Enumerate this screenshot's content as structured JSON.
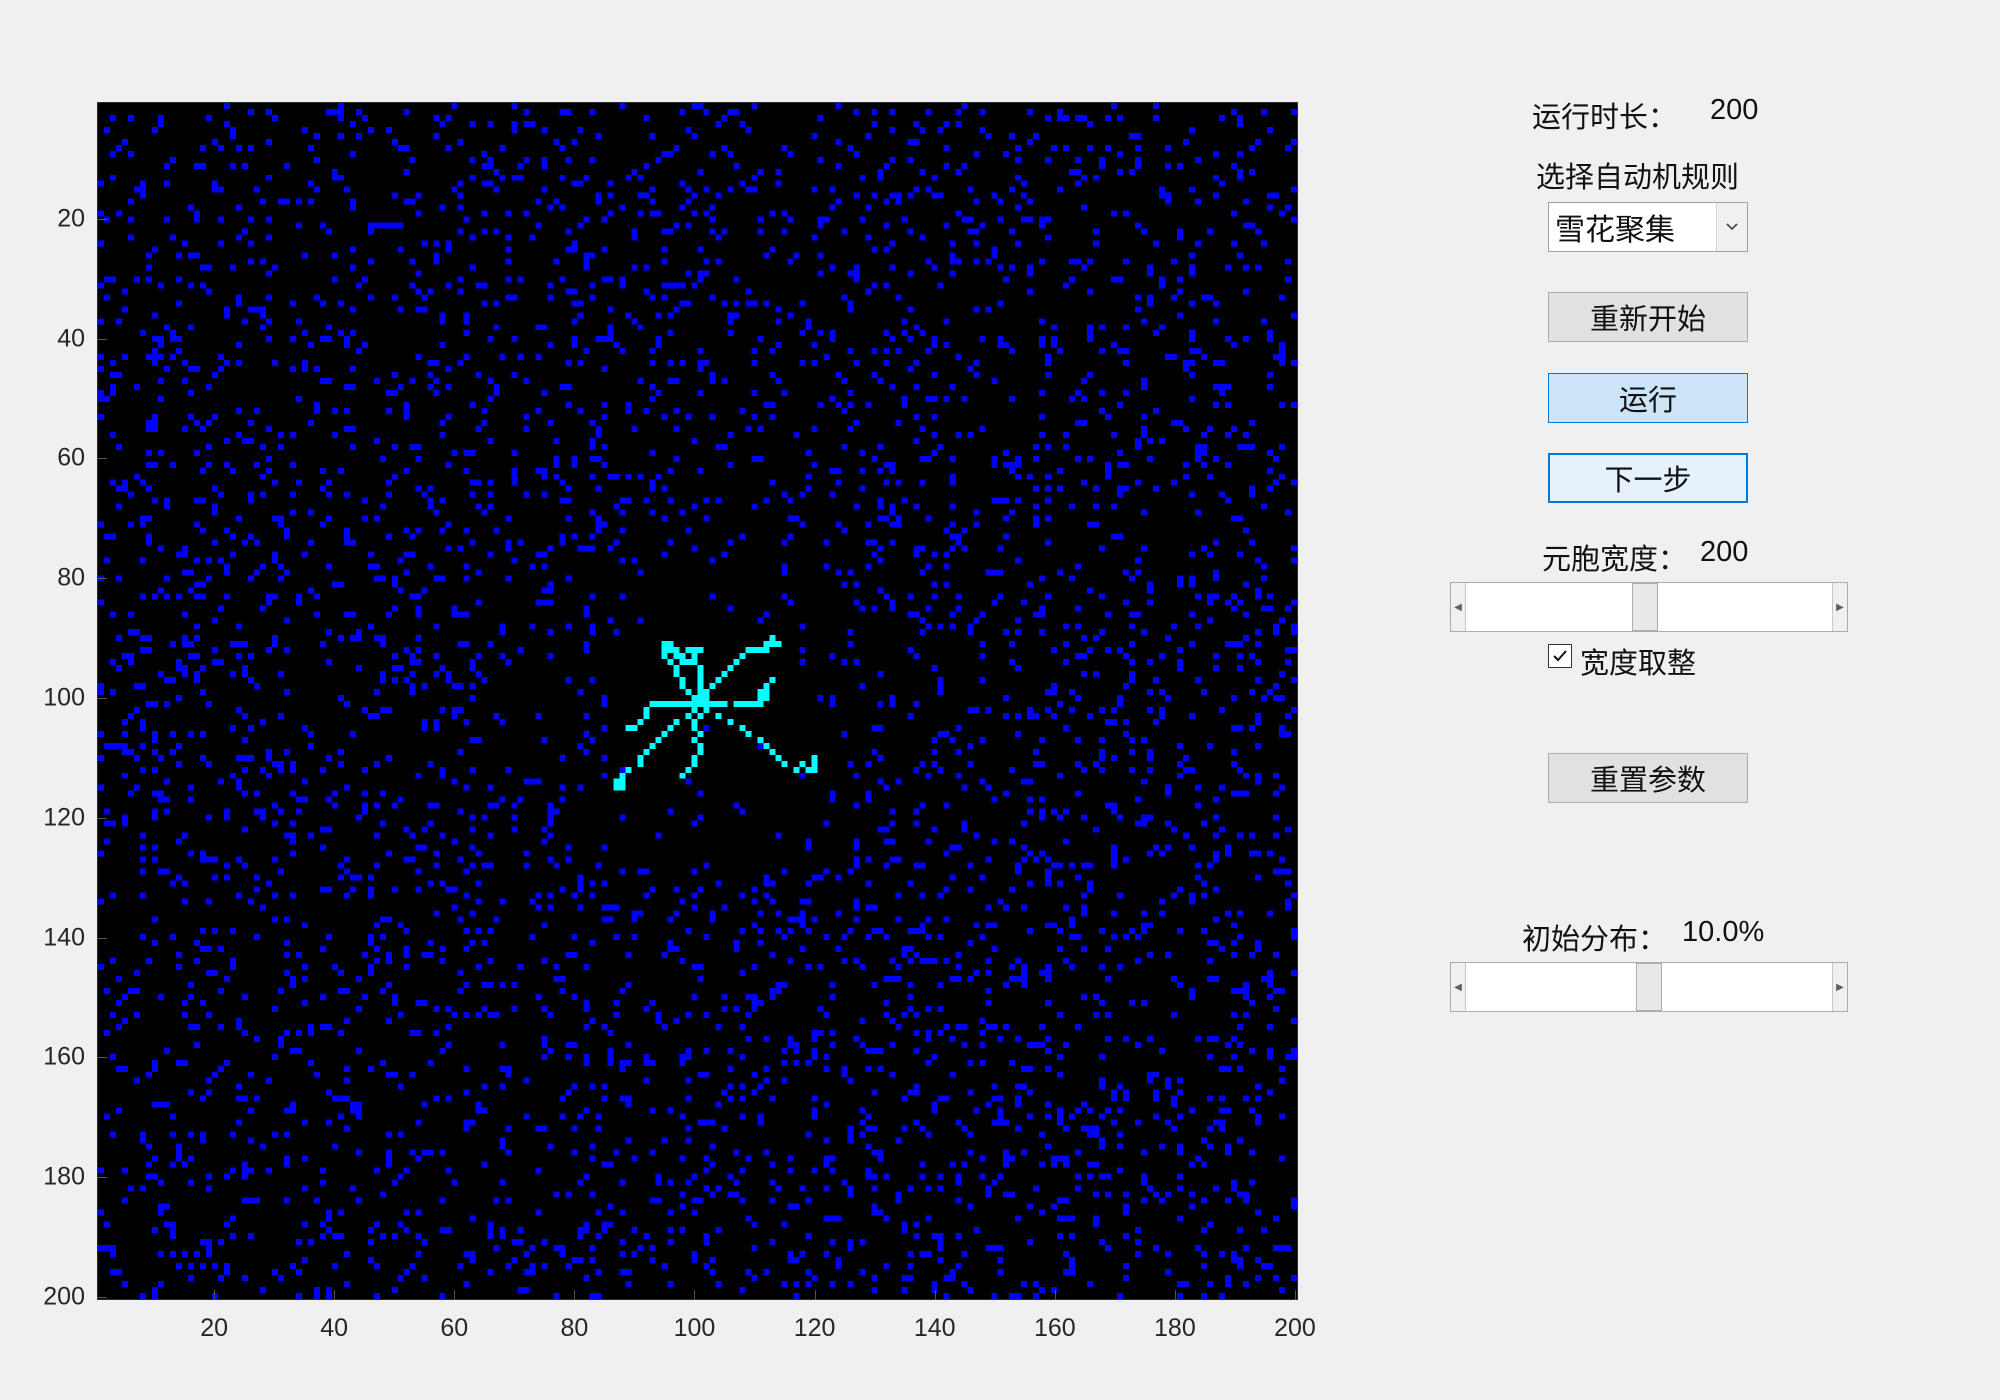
{
  "controls": {
    "run_duration_label": "运行时长：",
    "run_duration_value": "200",
    "rule_label": "选择自动机规则",
    "rule_select_value": "雪花聚集",
    "restart_button": "重新开始",
    "run_button": "运行",
    "next_step_button": "下一步",
    "cell_width_label": "元胞宽度：",
    "cell_width_value": "200",
    "cell_width_slider": {
      "min": 10,
      "max": 400,
      "value": 200
    },
    "round_width_label": "宽度取整",
    "round_width_checked": true,
    "reset_params_button": "重置参数",
    "init_distribution_label": "初始分布：",
    "init_distribution_value": "10.0%",
    "init_distribution_slider": {
      "min": 0,
      "max": 20,
      "value": 10.0
    }
  },
  "plot": {
    "type": "heatmap",
    "grid_size": 200,
    "background_color": "#000000",
    "particle_color": "#0000ff",
    "cluster_color": "#00ffff",
    "particle_density": 0.1,
    "x_ticks": [
      "20",
      "40",
      "60",
      "80",
      "100",
      "120",
      "140",
      "160",
      "180",
      "200"
    ],
    "y_ticks": [
      "20",
      "40",
      "60",
      "80",
      "100",
      "120",
      "140",
      "160",
      "180",
      "200"
    ]
  }
}
